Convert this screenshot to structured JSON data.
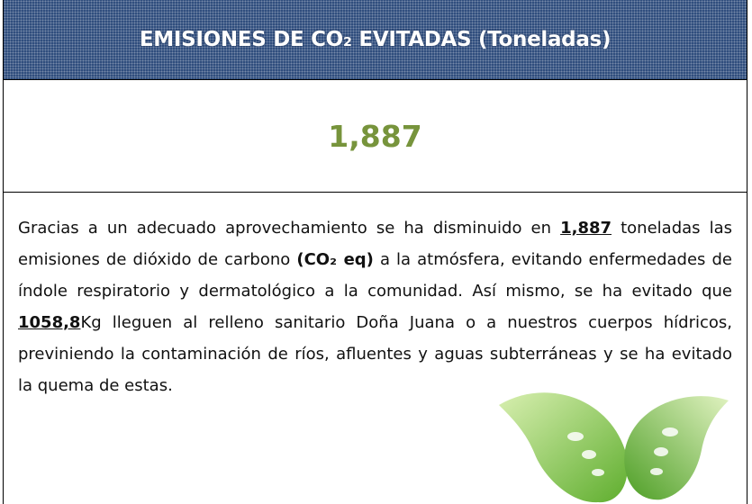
{
  "header": {
    "title": "EMISIONES DE CO₂ EVITADAS (Toneladas)"
  },
  "highlight": {
    "value": "1,887"
  },
  "body": {
    "segments": [
      "Gracias a un adecuado aprovechamiento se ha disminuido en ",
      "1,887",
      " toneladas las emisiones de dióxido de carbono ",
      "(CO₂ eq)",
      " a la atmósfera, evitando enfermedades de índole respiratorio y dermatológico a la comunidad. Así mismo, se ha evitado que ",
      "1058,8",
      "Kg lleguen al relleno sanitario Doña Juana o a nuestros cuerpos hídricos, previniendo la contaminación de ríos, afluentes y aguas subterráneas y se ha evitado la quema de estas."
    ]
  }
}
